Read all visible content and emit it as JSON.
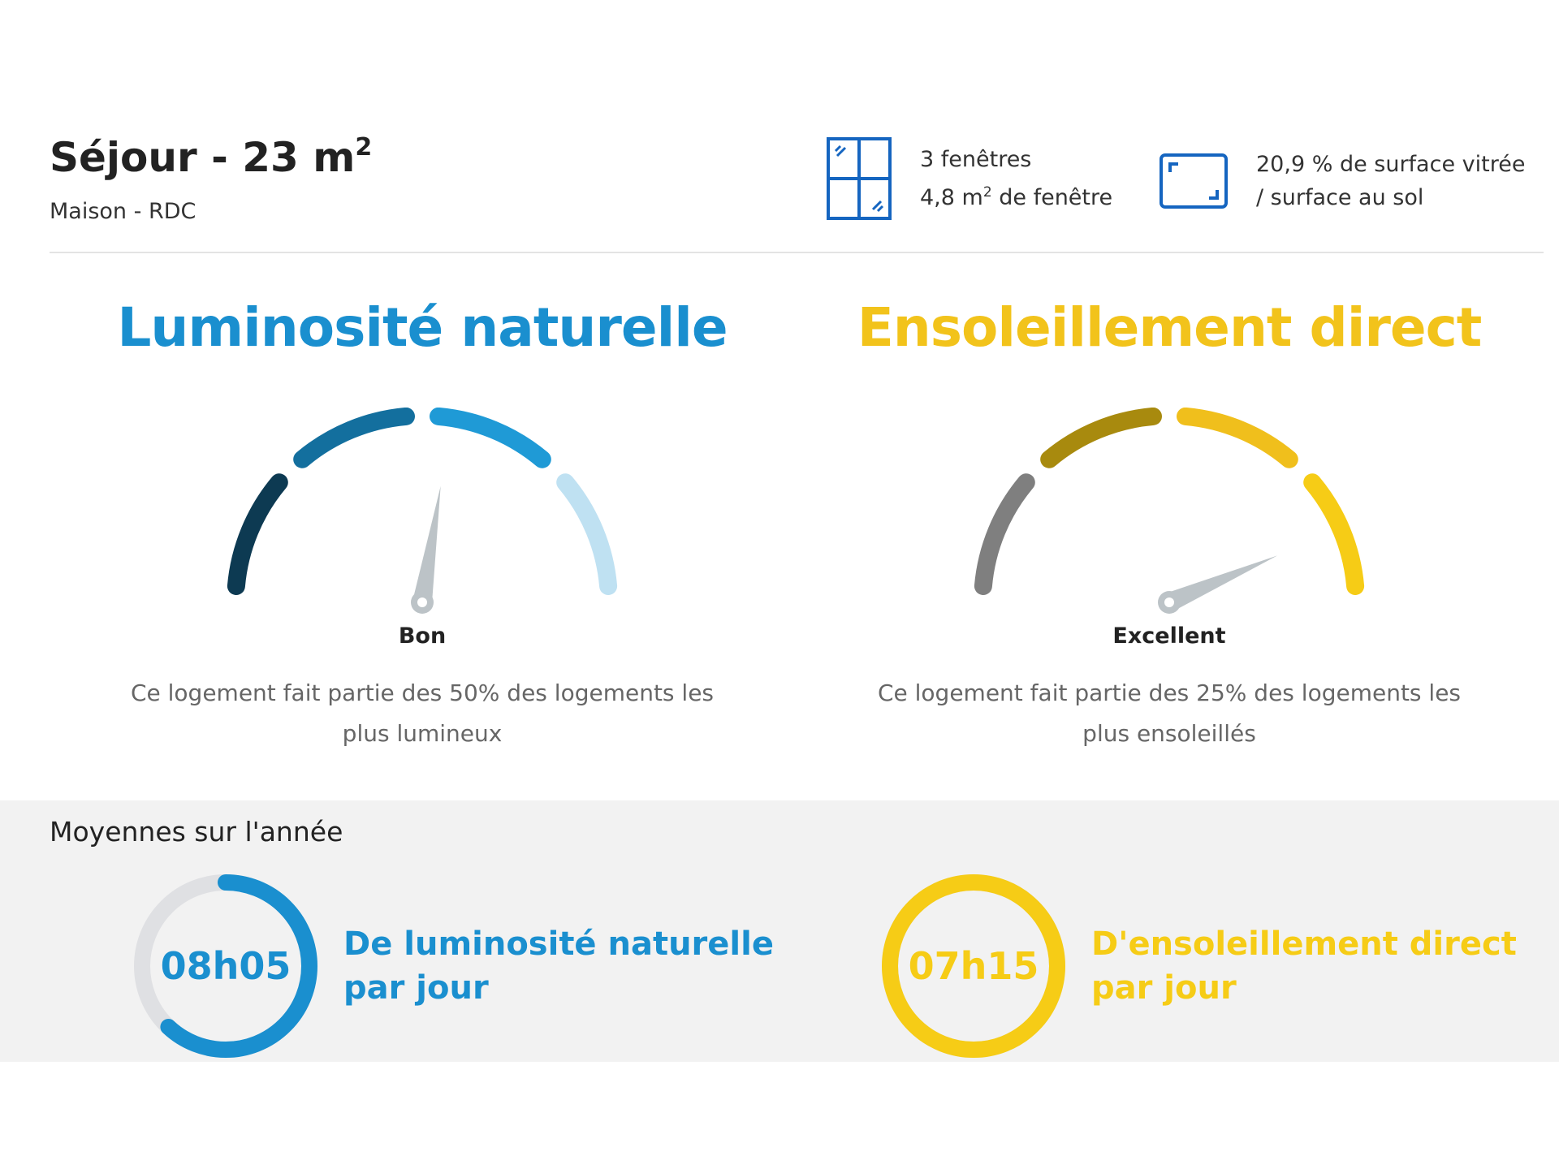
{
  "header": {
    "room_title": "Séjour - 23 m",
    "room_title_sup": "2",
    "room_subtitle": "Maison - RDC",
    "windows": {
      "icon": "window-icon",
      "line1": "3 fenêtres",
      "line2_pre": "4,8 m",
      "line2_sup": "2",
      "line2_post": " de fenêtre"
    },
    "glazing": {
      "icon": "surface-ratio-icon",
      "line1": "20,9 % de surface vitrée",
      "line2": "/ surface au sol"
    }
  },
  "gauges": {
    "luminosity": {
      "title": "Luminosité naturelle",
      "label": "Bon",
      "description": "Ce logement fait partie des 50% des logements les plus lumineux",
      "level": 0.55,
      "accent": "#1a8fcf",
      "segment_colors": [
        "#0d3a52",
        "#136f9e",
        "#1f9ad6",
        "#bfe1f2"
      ]
    },
    "sunshine": {
      "title": "Ensoleillement direct",
      "label": "Excellent",
      "description": "Ce logement fait partie des 25% des logements les plus ensoleillés",
      "level": 0.87,
      "accent": "#f2c31b",
      "segment_colors": [
        "#7f7f7f",
        "#a88a0e",
        "#f0bf1c",
        "#f6cc16"
      ]
    }
  },
  "averages": {
    "heading": "Moyennes sur l'année",
    "luminosity": {
      "value": "08h05",
      "line1": "De luminosité naturelle",
      "line2": "par jour",
      "fraction": 0.62,
      "color": "#1a8fcf",
      "track_color": "#dfe0e3"
    },
    "sunshine": {
      "value": "07h15",
      "line1": "D'ensoleillement direct",
      "line2": "par jour",
      "fraction": 1.0,
      "color": "#f6cc16",
      "track_color": "#dfe0e3"
    }
  },
  "needle_color": "#bcc3c7"
}
